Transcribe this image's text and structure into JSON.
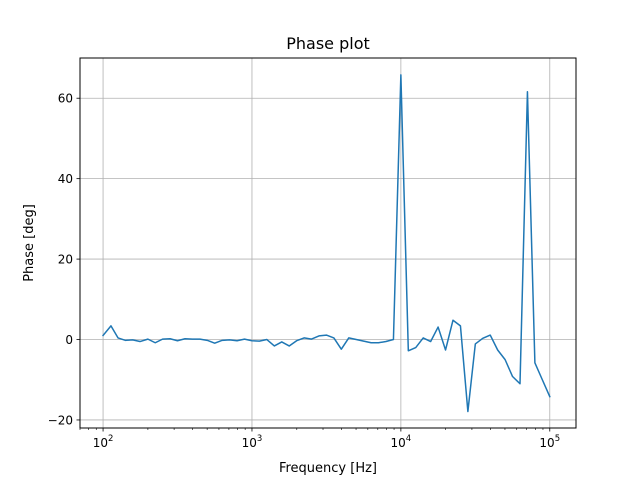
{
  "chart_data": {
    "type": "line",
    "title": "Phase plot",
    "xlabel": "Frequency [Hz]",
    "ylabel": "Phase [deg]",
    "x_scale": "log",
    "xlim": [
      70,
      150000
    ],
    "ylim": [
      -22,
      70
    ],
    "grid": true,
    "x_ticks": [
      {
        "value": 100,
        "base": "10",
        "exp": "2"
      },
      {
        "value": 1000,
        "base": "10",
        "exp": "3"
      },
      {
        "value": 10000,
        "base": "10",
        "exp": "4"
      },
      {
        "value": 100000,
        "base": "10",
        "exp": "5"
      }
    ],
    "y_ticks": [
      {
        "value": -20,
        "label": "−20"
      },
      {
        "value": 0,
        "label": "0"
      },
      {
        "value": 20,
        "label": "20"
      },
      {
        "value": 40,
        "label": "40"
      },
      {
        "value": 60,
        "label": "60"
      }
    ],
    "series": [
      {
        "color": "#1f77b4",
        "x": [
          100,
          113,
          126,
          141,
          158,
          177,
          200,
          224,
          251,
          282,
          316,
          355,
          398,
          447,
          501,
          562,
          631,
          708,
          794,
          891,
          1000,
          1122,
          1259,
          1413,
          1585,
          1778,
          1995,
          2239,
          2512,
          2818,
          3162,
          3548,
          3981,
          4467,
          5012,
          5623,
          6310,
          7079,
          7943,
          8913,
          10000,
          11220,
          12589,
          14125,
          15849,
          17783,
          19953,
          22387,
          25119,
          28184,
          31623,
          35481,
          39811,
          44668,
          50119,
          56234,
          63096,
          70795,
          79433,
          89125,
          100000
        ],
        "y": [
          1.0,
          3.4,
          0.4,
          -0.2,
          -0.1,
          -0.5,
          0.1,
          -0.8,
          0.1,
          0.2,
          -0.3,
          0.2,
          0.1,
          0.1,
          -0.2,
          -0.9,
          -0.2,
          -0.1,
          -0.3,
          0.1,
          -0.3,
          -0.4,
          0.0,
          -1.6,
          -0.6,
          -1.6,
          -0.3,
          0.4,
          0.1,
          0.9,
          1.1,
          0.4,
          -2.4,
          0.4,
          0.0,
          -0.4,
          -0.8,
          -0.8,
          -0.5,
          0.0,
          65.8,
          -2.8,
          -2.0,
          0.4,
          -0.5,
          3.1,
          -2.6,
          4.8,
          3.4,
          -17.9,
          -1.1,
          0.3,
          1.1,
          -2.6,
          -5.0,
          -9.2,
          -11.0,
          61.6,
          -5.8,
          -10.0,
          -14.2
        ]
      }
    ]
  }
}
